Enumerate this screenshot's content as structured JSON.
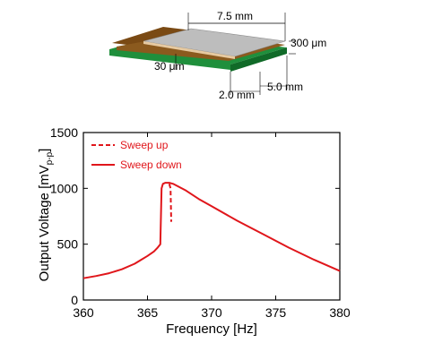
{
  "diagram": {
    "dimensions": [
      "7.5 mm",
      "300 μm",
      "30 μm",
      "2.0 mm",
      "5.0 mm"
    ]
  },
  "chart_data": {
    "type": "line",
    "xlabel": "Frequency [Hz]",
    "ylabel": "Output Voltage [mV",
    "ylabel_sub": "p-p",
    "ylabel_suffix": "]",
    "xlim": [
      360,
      380
    ],
    "ylim": [
      0,
      1500
    ],
    "xticks": [
      360,
      365,
      370,
      375,
      380
    ],
    "yticks": [
      0,
      500,
      1000,
      1500
    ],
    "grid": false,
    "legend_position": "top-left",
    "color": "#e0161b",
    "series": [
      {
        "name": "Sweep up",
        "style": "dashed",
        "x": [
          366.7,
          366.8,
          366.85
        ],
        "y": [
          1040,
          1000,
          700
        ]
      },
      {
        "name": "Sweep down",
        "style": "solid",
        "x": [
          360,
          361,
          362,
          363,
          364,
          364.5,
          365,
          365.5,
          365.8,
          366.0,
          366.05,
          366.1,
          366.2,
          366.4,
          366.7,
          367,
          368,
          369,
          370,
          372,
          374,
          376,
          378,
          380
        ],
        "y": [
          195,
          215,
          240,
          275,
          325,
          360,
          395,
          435,
          470,
          500,
          750,
          1000,
          1040,
          1050,
          1050,
          1040,
          980,
          905,
          840,
          710,
          590,
          470,
          360,
          260
        ]
      }
    ]
  }
}
